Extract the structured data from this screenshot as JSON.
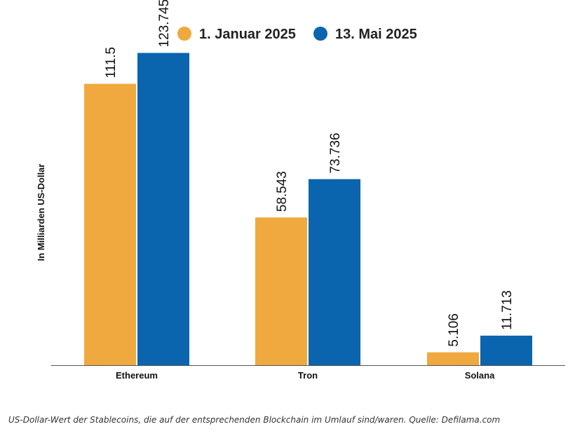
{
  "chart_data": {
    "type": "bar",
    "categories": [
      "Ethereum",
      "Tron",
      "Solana"
    ],
    "series": [
      {
        "name": "1. Januar 2025",
        "values": [
          111.5,
          58.543,
          5.106
        ],
        "labels": [
          "111.5",
          "58.543",
          "5.106"
        ],
        "color": "#F0A93E"
      },
      {
        "name": "13. Mai 2025",
        "values": [
          123.745,
          73.736,
          11.713
        ],
        "labels": [
          "123.745",
          "73.736",
          "11.713"
        ],
        "color": "#0A65AE"
      }
    ],
    "ylabel": "In Milliarden US-Dollar",
    "ylim": [
      0,
      135
    ],
    "grid": false,
    "legend_position": "top"
  },
  "caption": "US-Dollar-Wert der Stablecoins, die auf der entsprechenden Blockchain im Umlauf sind/waren. Quelle: Defilama.com"
}
